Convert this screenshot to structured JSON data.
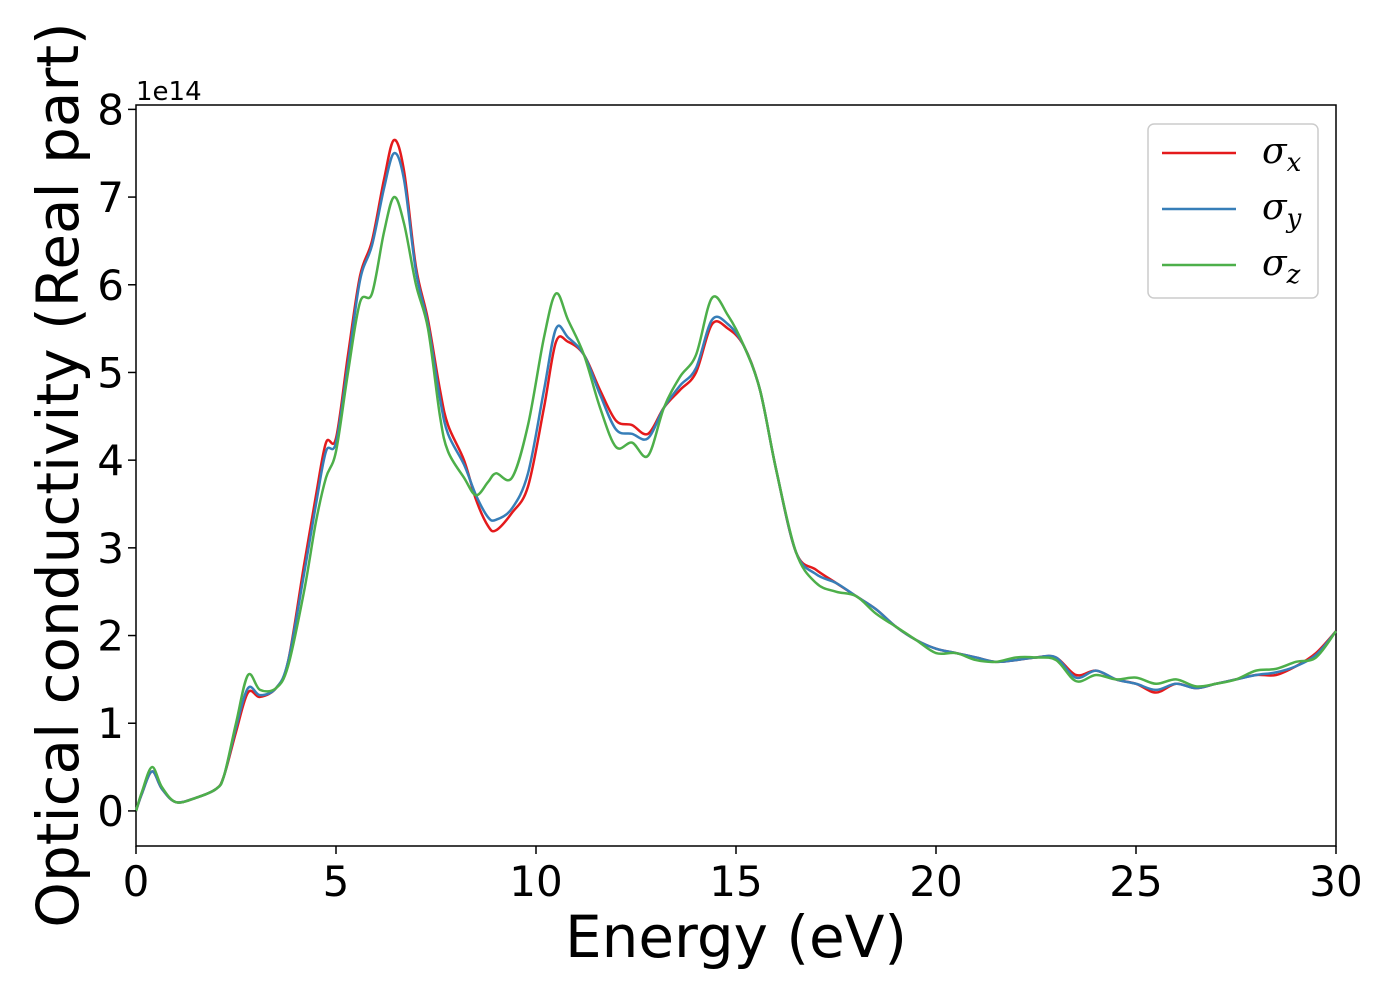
{
  "chart_data": {
    "type": "line",
    "xlabel": "Energy (eV)",
    "ylabel": "Optical conductivity (Real part)",
    "y_offset_label": "1e14",
    "xlim": [
      0,
      30
    ],
    "ylim": [
      -0.4,
      8.05
    ],
    "xticks": [
      0,
      5,
      10,
      15,
      20,
      25,
      30
    ],
    "yticks": [
      0,
      1,
      2,
      3,
      4,
      5,
      6,
      7,
      8
    ],
    "grid": false,
    "legend_position": "top-right",
    "series": [
      {
        "name": "σx",
        "symbol": "σ",
        "subscript": "x",
        "color": "#e41a1c",
        "x": [
          0,
          0.15,
          0.4,
          0.65,
          1.0,
          1.5,
          2.0,
          2.2,
          2.5,
          2.8,
          3.1,
          3.5,
          3.8,
          4.2,
          4.5,
          4.75,
          5.0,
          5.3,
          5.6,
          5.9,
          6.2,
          6.45,
          6.7,
          7.0,
          7.3,
          7.6,
          7.8,
          8.2,
          8.5,
          8.8,
          9.0,
          9.4,
          9.8,
          10.2,
          10.5,
          10.8,
          11.2,
          11.6,
          12.0,
          12.4,
          12.8,
          13.2,
          13.6,
          14.0,
          14.4,
          14.8,
          15.2,
          15.6,
          16.0,
          16.5,
          17.0,
          17.5,
          18.0,
          18.5,
          19.0,
          19.5,
          20.0,
          20.5,
          21.0,
          21.5,
          22.0,
          22.5,
          23.0,
          23.5,
          24.0,
          24.5,
          25.0,
          25.5,
          26.0,
          26.5,
          27.0,
          27.5,
          28.0,
          28.5,
          29.0,
          29.5,
          30.0
        ],
        "y": [
          0.0,
          0.2,
          0.45,
          0.25,
          0.1,
          0.15,
          0.25,
          0.4,
          0.9,
          1.35,
          1.3,
          1.4,
          1.7,
          2.8,
          3.6,
          4.2,
          4.25,
          5.2,
          6.1,
          6.5,
          7.2,
          7.65,
          7.3,
          6.2,
          5.6,
          4.8,
          4.4,
          4.0,
          3.55,
          3.25,
          3.2,
          3.4,
          3.7,
          4.6,
          5.35,
          5.35,
          5.2,
          4.8,
          4.45,
          4.4,
          4.3,
          4.6,
          4.8,
          5.0,
          5.55,
          5.5,
          5.3,
          4.8,
          3.9,
          2.95,
          2.75,
          2.6,
          2.45,
          2.3,
          2.1,
          1.95,
          1.85,
          1.8,
          1.75,
          1.7,
          1.72,
          1.75,
          1.75,
          1.55,
          1.6,
          1.5,
          1.45,
          1.35,
          1.45,
          1.4,
          1.45,
          1.5,
          1.55,
          1.55,
          1.65,
          1.8,
          2.05
        ]
      },
      {
        "name": "σy",
        "symbol": "σ",
        "subscript": "y",
        "color": "#377eb8",
        "x": [
          0,
          0.15,
          0.4,
          0.65,
          1.0,
          1.5,
          2.0,
          2.2,
          2.5,
          2.8,
          3.1,
          3.5,
          3.8,
          4.2,
          4.5,
          4.75,
          5.0,
          5.3,
          5.6,
          5.9,
          6.2,
          6.45,
          6.7,
          7.0,
          7.3,
          7.6,
          7.8,
          8.2,
          8.5,
          8.8,
          9.0,
          9.4,
          9.8,
          10.2,
          10.5,
          10.8,
          11.2,
          11.6,
          12.0,
          12.4,
          12.8,
          13.2,
          13.6,
          14.0,
          14.4,
          14.8,
          15.2,
          15.6,
          16.0,
          16.5,
          17.0,
          17.5,
          18.0,
          18.5,
          19.0,
          19.5,
          20.0,
          20.5,
          21.0,
          21.5,
          22.0,
          22.5,
          23.0,
          23.5,
          24.0,
          24.5,
          25.0,
          25.5,
          26.0,
          26.5,
          27.0,
          27.5,
          28.0,
          28.5,
          29.0,
          29.5,
          30.0
        ],
        "y": [
          0.0,
          0.2,
          0.45,
          0.25,
          0.1,
          0.15,
          0.25,
          0.4,
          0.95,
          1.4,
          1.32,
          1.4,
          1.7,
          2.7,
          3.5,
          4.1,
          4.2,
          5.1,
          6.05,
          6.45,
          7.1,
          7.5,
          7.2,
          6.15,
          5.55,
          4.7,
          4.3,
          3.95,
          3.6,
          3.35,
          3.32,
          3.45,
          3.85,
          4.8,
          5.5,
          5.4,
          5.2,
          4.75,
          4.35,
          4.3,
          4.25,
          4.6,
          4.85,
          5.05,
          5.6,
          5.55,
          5.3,
          4.8,
          3.9,
          2.95,
          2.7,
          2.6,
          2.45,
          2.3,
          2.1,
          1.95,
          1.85,
          1.8,
          1.75,
          1.7,
          1.72,
          1.75,
          1.75,
          1.52,
          1.6,
          1.5,
          1.45,
          1.38,
          1.45,
          1.4,
          1.45,
          1.5,
          1.55,
          1.58,
          1.65,
          1.78,
          2.05
        ]
      },
      {
        "name": "σz",
        "symbol": "σ",
        "subscript": "z",
        "color": "#4daf4a",
        "x": [
          0,
          0.15,
          0.4,
          0.65,
          1.0,
          1.5,
          2.0,
          2.2,
          2.5,
          2.8,
          3.1,
          3.5,
          3.8,
          4.2,
          4.5,
          4.75,
          5.0,
          5.3,
          5.6,
          5.9,
          6.2,
          6.45,
          6.7,
          7.0,
          7.3,
          7.6,
          7.8,
          8.2,
          8.5,
          8.8,
          9.0,
          9.4,
          9.8,
          10.2,
          10.5,
          10.8,
          11.2,
          11.6,
          12.0,
          12.4,
          12.8,
          13.2,
          13.6,
          14.0,
          14.4,
          14.8,
          15.2,
          15.6,
          16.0,
          16.5,
          17.0,
          17.5,
          18.0,
          18.5,
          19.0,
          19.5,
          20.0,
          20.5,
          21.0,
          21.5,
          22.0,
          22.5,
          23.0,
          23.5,
          24.0,
          24.5,
          25.0,
          25.5,
          26.0,
          26.5,
          27.0,
          27.5,
          28.0,
          28.5,
          29.0,
          29.5,
          30.0
        ],
        "y": [
          0.0,
          0.22,
          0.5,
          0.27,
          0.1,
          0.15,
          0.25,
          0.4,
          1.0,
          1.55,
          1.38,
          1.4,
          1.65,
          2.5,
          3.3,
          3.8,
          4.1,
          5.0,
          5.8,
          5.9,
          6.6,
          7.0,
          6.7,
          6.0,
          5.5,
          4.5,
          4.1,
          3.8,
          3.6,
          3.75,
          3.85,
          3.8,
          4.4,
          5.4,
          5.9,
          5.6,
          5.2,
          4.6,
          4.15,
          4.2,
          4.05,
          4.6,
          4.95,
          5.2,
          5.85,
          5.65,
          5.3,
          4.8,
          3.9,
          2.95,
          2.6,
          2.5,
          2.45,
          2.25,
          2.1,
          1.95,
          1.8,
          1.8,
          1.72,
          1.7,
          1.75,
          1.75,
          1.72,
          1.48,
          1.55,
          1.5,
          1.52,
          1.45,
          1.5,
          1.42,
          1.45,
          1.5,
          1.6,
          1.62,
          1.7,
          1.75,
          2.05
        ]
      }
    ]
  }
}
